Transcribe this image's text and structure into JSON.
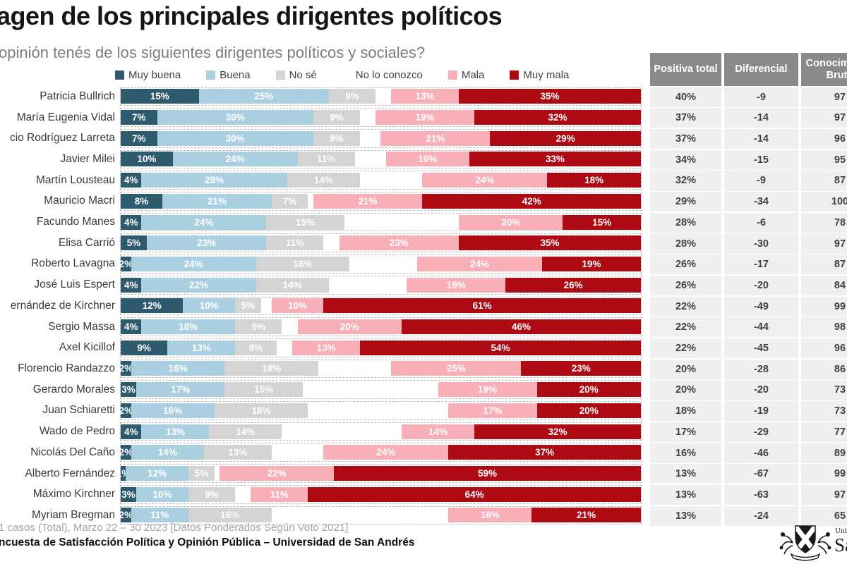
{
  "title": "agen de los principales dirigentes políticos",
  "subtitle": "opinión tenés de los siguientes dirigentes políticos y sociales?",
  "legend": [
    {
      "label": "Muy buena",
      "color": "#2e5a6d"
    },
    {
      "label": "Buena",
      "color": "#a9cfe0"
    },
    {
      "label": "No sé",
      "color": "#d4d4d4"
    },
    {
      "label": "No lo conozco",
      "color": "#ffffff"
    },
    {
      "label": "Mala",
      "color": "#f8afb8"
    },
    {
      "label": "Muy mala",
      "color": "#ad0a14"
    }
  ],
  "chart_data": {
    "type": "bar",
    "stacked": true,
    "orientation": "horizontal",
    "units": "%",
    "xlim": [
      0,
      100
    ],
    "categories": [
      "Patricia Bullrich",
      "María Eugenia Vidal",
      "cio Rodríguez Larreta",
      "Javier Milei",
      "Martín Lousteau",
      "Mauricio Macri",
      "Facundo Manes",
      "Elisa Carrió",
      "Roberto Lavagna",
      "José Luis Espert",
      "ernández de Kirchner",
      "Sergio Massa",
      "Axel Kicillof",
      "Florencio Randazzo",
      "Gerardo Morales",
      "Juan Schiaretti",
      "Wado de Pedro",
      "Nicolás Del Caño",
      "Alberto Fernández",
      "Máximo Kirchner",
      "Myriam Bregman"
    ],
    "series": [
      {
        "name": "Muy buena",
        "values": [
          15,
          7,
          7,
          10,
          4,
          8,
          4,
          5,
          2,
          4,
          12,
          4,
          9,
          2,
          3,
          2,
          4,
          2,
          1,
          3,
          2
        ]
      },
      {
        "name": "Buena",
        "values": [
          25,
          30,
          30,
          24,
          28,
          21,
          24,
          23,
          24,
          22,
          10,
          18,
          13,
          18,
          17,
          16,
          13,
          14,
          12,
          10,
          11
        ]
      },
      {
        "name": "No sé",
        "values": [
          9,
          9,
          9,
          11,
          14,
          7,
          15,
          11,
          18,
          14,
          5,
          9,
          8,
          18,
          15,
          18,
          14,
          13,
          5,
          9,
          16
        ]
      },
      {
        "name": "Mala",
        "values": [
          13,
          19,
          21,
          16,
          24,
          21,
          20,
          23,
          24,
          19,
          10,
          20,
          13,
          25,
          19,
          17,
          14,
          24,
          22,
          11,
          16
        ]
      },
      {
        "name": "Muy mala",
        "values": [
          35,
          32,
          29,
          33,
          18,
          42,
          15,
          35,
          19,
          26,
          61,
          46,
          54,
          23,
          20,
          20,
          32,
          37,
          59,
          64,
          21
        ]
      }
    ],
    "positiva_total": [
      40,
      37,
      37,
      34,
      32,
      29,
      28,
      28,
      26,
      26,
      22,
      22,
      22,
      20,
      20,
      18,
      17,
      16,
      13,
      13,
      13
    ],
    "diferencial": [
      -9,
      -14,
      -14,
      -15,
      -9,
      -34,
      -6,
      -30,
      -17,
      -20,
      -49,
      -44,
      -45,
      -28,
      -20,
      -19,
      -29,
      -46,
      -67,
      -63,
      -24
    ],
    "conocimiento_bruto": [
      97,
      97,
      96,
      95,
      87,
      100,
      78,
      97,
      87,
      84,
      99,
      98,
      96,
      86,
      73,
      73,
      77,
      89,
      99,
      97,
      65
    ]
  },
  "table": {
    "headers": [
      "Positiva total",
      "Diferencial",
      "Conocimiento Bruto"
    ]
  },
  "footer": {
    "note": "1 casos (Total), Marzo 22 – 30 2023 [Datos Ponderados Según Voto 2021]",
    "source": "ncuesta de Satisfacción Política y Opinión Pública – Universidad de San Andrés"
  },
  "logo": {
    "line1": "Universidad de",
    "line2": "San Andrés"
  }
}
